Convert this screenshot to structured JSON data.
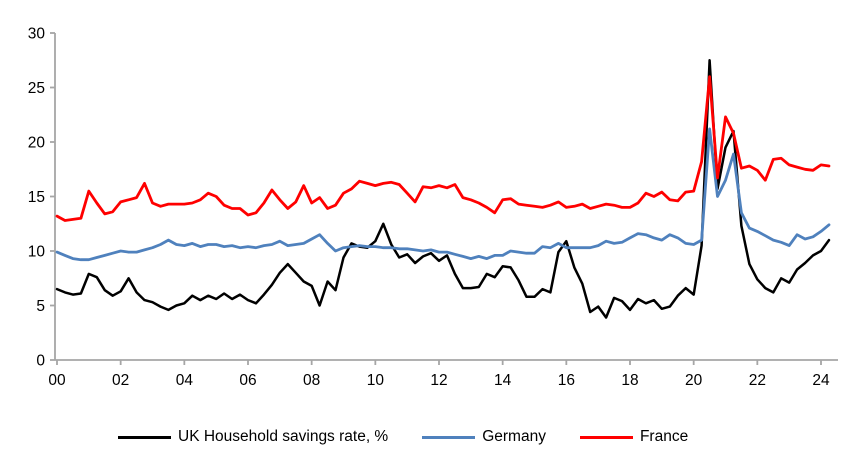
{
  "chart_data": {
    "type": "line",
    "title": "",
    "xlabel": "",
    "ylabel": "",
    "grid": false,
    "legend_position": "bottom",
    "background_color": "#ffffff",
    "axis_color": "#a6a6a6",
    "tick_label_color": "#000000",
    "ylim": [
      0,
      30
    ],
    "xlim": [
      2000,
      2024
    ],
    "y_ticks": [
      0,
      5,
      10,
      15,
      20,
      25,
      30
    ],
    "x_ticks": [
      2000,
      2002,
      2004,
      2006,
      2008,
      2010,
      2012,
      2014,
      2016,
      2018,
      2020,
      2022,
      2024
    ],
    "x_tick_labels": [
      "00",
      "02",
      "04",
      "06",
      "08",
      "10",
      "12",
      "14",
      "16",
      "18",
      "20",
      "22",
      "24"
    ],
    "x": [
      2000,
      2000.25,
      2000.5,
      2000.75,
      2001,
      2001.25,
      2001.5,
      2001.75,
      2002,
      2002.25,
      2002.5,
      2002.75,
      2003,
      2003.25,
      2003.5,
      2003.75,
      2004,
      2004.25,
      2004.5,
      2004.75,
      2005,
      2005.25,
      2005.5,
      2005.75,
      2006,
      2006.25,
      2006.5,
      2006.75,
      2007,
      2007.25,
      2007.5,
      2007.75,
      2008,
      2008.25,
      2008.5,
      2008.75,
      2009,
      2009.25,
      2009.5,
      2009.75,
      2010,
      2010.25,
      2010.5,
      2010.75,
      2011,
      2011.25,
      2011.5,
      2011.75,
      2012,
      2012.25,
      2012.5,
      2012.75,
      2013,
      2013.25,
      2013.5,
      2013.75,
      2014,
      2014.25,
      2014.5,
      2014.75,
      2015,
      2015.25,
      2015.5,
      2015.75,
      2016,
      2016.25,
      2016.5,
      2016.75,
      2017,
      2017.25,
      2017.5,
      2017.75,
      2018,
      2018.25,
      2018.5,
      2018.75,
      2019,
      2019.25,
      2019.5,
      2019.75,
      2020,
      2020.25,
      2020.5,
      2020.75,
      2021,
      2021.25,
      2021.5,
      2021.75,
      2022,
      2022.25,
      2022.5,
      2022.75,
      2023,
      2023.25,
      2023.5,
      2023.75,
      2024,
      2024.25
    ],
    "series": [
      {
        "name": "UK Household savings rate, %",
        "color": "#000000",
        "values": [
          6.5,
          6.2,
          6.0,
          6.1,
          7.9,
          7.6,
          6.4,
          5.9,
          6.3,
          7.5,
          6.2,
          5.5,
          5.3,
          4.9,
          4.6,
          5.0,
          5.2,
          5.9,
          5.5,
          5.9,
          5.6,
          6.1,
          5.6,
          6.0,
          5.5,
          5.2,
          6.0,
          6.9,
          8.0,
          8.8,
          8.0,
          7.2,
          6.8,
          5.0,
          7.2,
          6.4,
          9.4,
          10.7,
          10.4,
          10.3,
          10.9,
          12.5,
          10.6,
          9.4,
          9.7,
          8.9,
          9.5,
          9.8,
          9.1,
          9.6,
          7.9,
          6.6,
          6.6,
          6.7,
          7.9,
          7.6,
          8.6,
          8.5,
          7.3,
          5.8,
          5.8,
          6.5,
          6.2,
          9.9,
          10.9,
          8.5,
          7.0,
          4.4,
          4.9,
          3.9,
          5.7,
          5.4,
          4.6,
          5.6,
          5.2,
          5.5,
          4.7,
          4.9,
          5.9,
          6.6,
          6.0,
          10.5,
          27.5,
          15.7,
          19.5,
          21.0,
          12.3,
          8.8,
          7.4,
          6.6,
          6.2,
          7.5,
          7.1,
          8.3,
          8.9,
          9.6,
          10.0,
          11.0
        ]
      },
      {
        "name": "Germany",
        "color": "#4f81bd",
        "values": [
          9.9,
          9.6,
          9.3,
          9.2,
          9.2,
          9.4,
          9.6,
          9.8,
          10.0,
          9.9,
          9.9,
          10.1,
          10.3,
          10.6,
          11.0,
          10.6,
          10.5,
          10.7,
          10.4,
          10.6,
          10.6,
          10.4,
          10.5,
          10.3,
          10.4,
          10.3,
          10.5,
          10.6,
          10.9,
          10.5,
          10.6,
          10.7,
          11.1,
          11.5,
          10.7,
          10.0,
          10.3,
          10.4,
          10.5,
          10.4,
          10.4,
          10.3,
          10.3,
          10.2,
          10.2,
          10.1,
          10.0,
          10.1,
          9.9,
          9.9,
          9.7,
          9.5,
          9.3,
          9.5,
          9.3,
          9.6,
          9.6,
          10.0,
          9.9,
          9.8,
          9.8,
          10.4,
          10.3,
          10.7,
          10.3,
          10.3,
          10.3,
          10.3,
          10.5,
          10.9,
          10.7,
          10.8,
          11.2,
          11.6,
          11.5,
          11.2,
          11.0,
          11.5,
          11.2,
          10.7,
          10.6,
          11.0,
          21.2,
          15.0,
          16.5,
          18.9,
          13.5,
          12.1,
          11.8,
          11.4,
          11.0,
          10.8,
          10.5,
          11.5,
          11.1,
          11.3,
          11.8,
          12.4
        ]
      },
      {
        "name": "France",
        "color": "#ff0000",
        "values": [
          13.2,
          12.8,
          12.9,
          13.0,
          15.5,
          14.4,
          13.4,
          13.6,
          14.5,
          14.7,
          14.9,
          16.2,
          14.4,
          14.1,
          14.3,
          14.3,
          14.3,
          14.4,
          14.7,
          15.3,
          15.0,
          14.2,
          13.9,
          13.9,
          13.3,
          13.5,
          14.4,
          15.6,
          14.7,
          13.9,
          14.5,
          16.0,
          14.4,
          14.9,
          13.9,
          14.2,
          15.3,
          15.7,
          16.4,
          16.2,
          16.0,
          16.2,
          16.3,
          16.1,
          15.3,
          14.5,
          15.9,
          15.8,
          16.0,
          15.8,
          16.1,
          14.9,
          14.7,
          14.4,
          14.0,
          13.5,
          14.7,
          14.8,
          14.3,
          14.2,
          14.1,
          14.0,
          14.2,
          14.5,
          14.0,
          14.1,
          14.3,
          13.9,
          14.1,
          14.3,
          14.2,
          14.0,
          14.0,
          14.4,
          15.3,
          15.0,
          15.4,
          14.7,
          14.6,
          15.4,
          15.5,
          18.2,
          26.0,
          16.7,
          22.3,
          20.8,
          17.6,
          17.8,
          17.4,
          16.5,
          18.4,
          18.5,
          17.9,
          17.7,
          17.5,
          17.4,
          17.9,
          17.8
        ]
      }
    ]
  }
}
